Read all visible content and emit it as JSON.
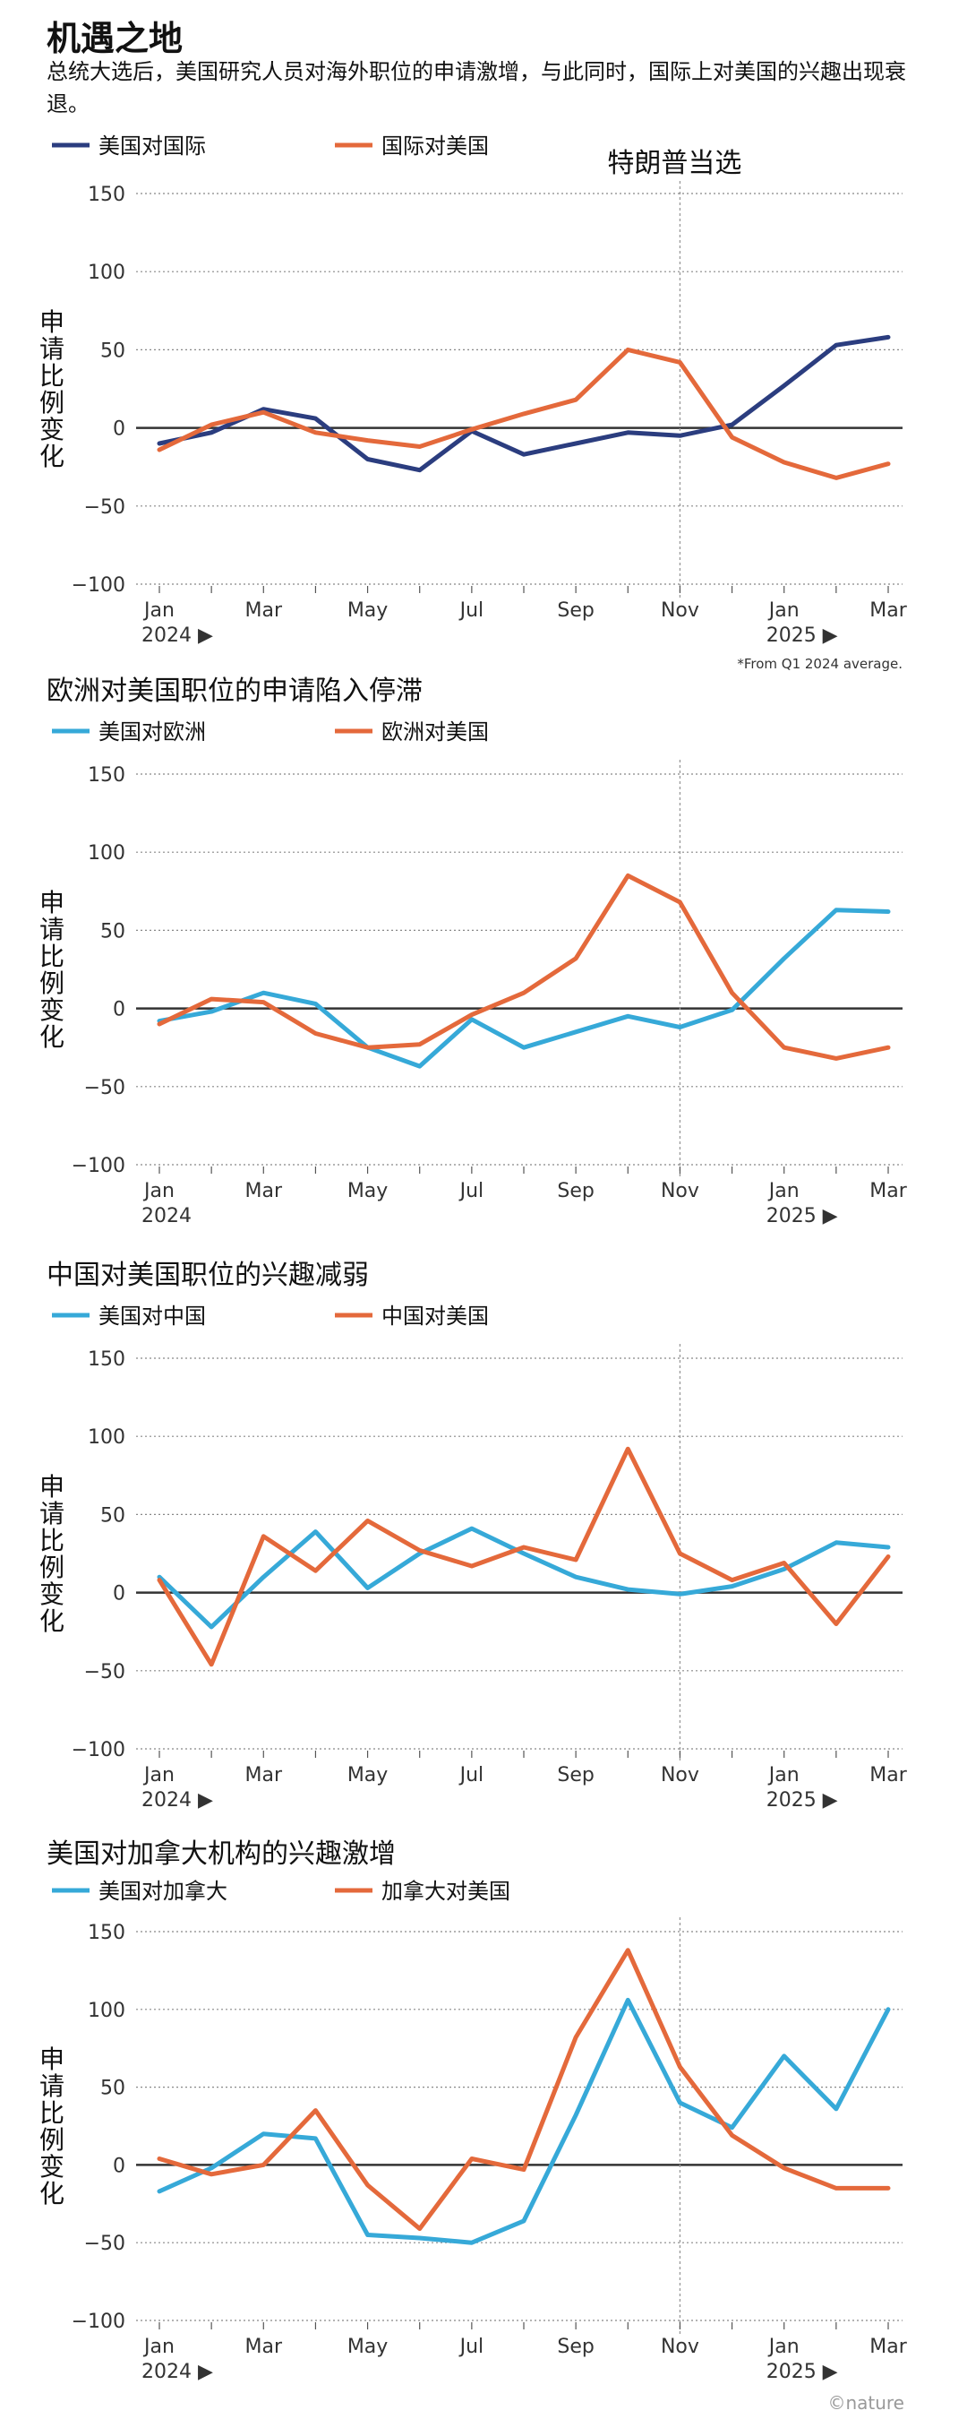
{
  "page": {
    "title": "机遇之地",
    "subtitle": "总统大选后，美国研究人员对海外职位的申请激增，与此同时，国际上对美国的兴趣出现衰退。",
    "footnote": "*From Q1 2024 average.",
    "credit": "©nature"
  },
  "chart_data": [
    {
      "type": "line",
      "title": "",
      "ylabel": "申请比例变化",
      "ylim": [
        -100,
        150
      ],
      "yticks": [
        150,
        100,
        50,
        0,
        -50,
        -100
      ],
      "tick_labels": [
        "Jan",
        "Mar",
        "May",
        "Jul",
        "Sep",
        "Nov",
        "Jan",
        "Mar"
      ],
      "year_labels": [
        "2024 ▶",
        "2025 ▶"
      ],
      "annotation": "特朗普当选",
      "series": [
        {
          "name": "美国对国际",
          "color": "#2b3d7f",
          "values": [
            -10,
            -3,
            12,
            6,
            -20,
            -27,
            -2,
            -17,
            -10,
            -3,
            -5,
            2,
            27,
            53,
            58
          ]
        },
        {
          "name": "国际对美国",
          "color": "#e4693b",
          "values": [
            -14,
            2,
            10,
            -3,
            -8,
            -12,
            -1,
            9,
            18,
            50,
            42,
            -6,
            -22,
            -32,
            -23
          ]
        }
      ]
    },
    {
      "type": "line",
      "title": "欧洲对美国职位的申请陷入停滞",
      "ylabel": "申请比例变化",
      "ylim": [
        -100,
        150
      ],
      "yticks": [
        150,
        100,
        50,
        0,
        -50,
        -100
      ],
      "tick_labels": [
        "Jan",
        "Mar",
        "May",
        "Jul",
        "Sep",
        "Nov",
        "Jan",
        "Mar"
      ],
      "year_labels": [
        "2024",
        "2025 ▶"
      ],
      "series": [
        {
          "name": "美国对欧洲",
          "color": "#36a9d8",
          "values": [
            -8,
            -2,
            10,
            3,
            -25,
            -37,
            -7,
            -25,
            -15,
            -5,
            -12,
            -1,
            32,
            63,
            62
          ]
        },
        {
          "name": "欧洲对美国",
          "color": "#e4693b",
          "values": [
            -10,
            6,
            4,
            -16,
            -25,
            -23,
            -4,
            10,
            32,
            85,
            68,
            10,
            -25,
            -32,
            -25
          ]
        }
      ]
    },
    {
      "type": "line",
      "title": "中国对美国职位的兴趣减弱",
      "ylabel": "申请比例变化",
      "ylim": [
        -100,
        150
      ],
      "yticks": [
        150,
        100,
        50,
        0,
        -50,
        -100
      ],
      "tick_labels": [
        "Jan",
        "Mar",
        "May",
        "Jul",
        "Sep",
        "Nov",
        "Jan",
        "Mar"
      ],
      "year_labels": [
        "2024 ▶",
        "2025 ▶"
      ],
      "series": [
        {
          "name": "美国对中国",
          "color": "#36a9d8",
          "values": [
            10,
            -22,
            10,
            39,
            3,
            25,
            41,
            25,
            10,
            2,
            -1,
            4,
            15,
            32,
            29
          ]
        },
        {
          "name": "中国对美国",
          "color": "#e4693b",
          "values": [
            8,
            -46,
            36,
            14,
            46,
            27,
            17,
            29,
            21,
            92,
            25,
            8,
            19,
            -20,
            23
          ]
        }
      ]
    },
    {
      "type": "line",
      "title": "美国对加拿大机构的兴趣激增",
      "ylabel": "申请比例变化",
      "ylim": [
        -100,
        150
      ],
      "yticks": [
        150,
        100,
        50,
        0,
        -50,
        -100
      ],
      "tick_labels": [
        "Jan",
        "Mar",
        "May",
        "Jul",
        "Sep",
        "Nov",
        "Jan",
        "Mar"
      ],
      "year_labels": [
        "2024 ▶",
        "2025 ▶"
      ],
      "series": [
        {
          "name": "美国对加拿大",
          "color": "#36a9d8",
          "values": [
            -17,
            -2,
            20,
            17,
            -45,
            -47,
            -50,
            -36,
            32,
            106,
            40,
            24,
            70,
            36,
            100
          ]
        },
        {
          "name": "加拿大对美国",
          "color": "#e4693b",
          "values": [
            4,
            -6,
            0,
            35,
            -13,
            -41,
            4,
            -3,
            82,
            138,
            63,
            19,
            -2,
            -15,
            -15
          ]
        }
      ]
    }
  ]
}
